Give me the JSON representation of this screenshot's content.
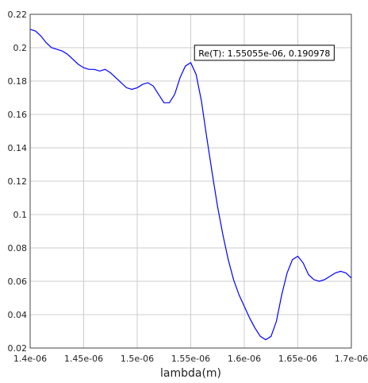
{
  "chart_data": {
    "type": "line",
    "xlabel": "lambda(m)",
    "ylabel": "",
    "title": "",
    "xlim": [
      1.4e-06,
      1.7e-06
    ],
    "ylim": [
      0.02,
      0.22
    ],
    "grid": true,
    "x_ticks": [
      {
        "value": 1.4e-06,
        "label": "1.4e-06"
      },
      {
        "value": 1.45e-06,
        "label": "1.45e-06"
      },
      {
        "value": 1.5e-06,
        "label": "1.5e-06"
      },
      {
        "value": 1.55e-06,
        "label": "1.55e-06"
      },
      {
        "value": 1.6e-06,
        "label": "1.6e-06"
      },
      {
        "value": 1.65e-06,
        "label": "1.65e-06"
      },
      {
        "value": 1.7e-06,
        "label": "1.7e-06"
      }
    ],
    "y_ticks": [
      {
        "value": 0.02,
        "label": "0.02"
      },
      {
        "value": 0.04,
        "label": "0.04"
      },
      {
        "value": 0.06,
        "label": "0.06"
      },
      {
        "value": 0.08,
        "label": "0.08"
      },
      {
        "value": 0.1,
        "label": "0.1"
      },
      {
        "value": 0.12,
        "label": "0.12"
      },
      {
        "value": 0.14,
        "label": "0.14"
      },
      {
        "value": 0.16,
        "label": "0.16"
      },
      {
        "value": 0.18,
        "label": "0.18"
      },
      {
        "value": 0.2,
        "label": "0.2"
      },
      {
        "value": 0.22,
        "label": "0.22"
      }
    ],
    "series": [
      {
        "color": "#0000ff",
        "x": [
          1.4e-06,
          1.405e-06,
          1.41e-06,
          1.415e-06,
          1.42e-06,
          1.425e-06,
          1.43e-06,
          1.435e-06,
          1.44e-06,
          1.445e-06,
          1.45e-06,
          1.455e-06,
          1.46e-06,
          1.465e-06,
          1.47e-06,
          1.475e-06,
          1.48e-06,
          1.485e-06,
          1.49e-06,
          1.495e-06,
          1.5e-06,
          1.505e-06,
          1.51e-06,
          1.515e-06,
          1.52e-06,
          1.525e-06,
          1.53e-06,
          1.535e-06,
          1.54e-06,
          1.545e-06,
          1.55e-06,
          1.555e-06,
          1.56e-06,
          1.565e-06,
          1.57e-06,
          1.575e-06,
          1.58e-06,
          1.585e-06,
          1.59e-06,
          1.595e-06,
          1.6e-06,
          1.605e-06,
          1.61e-06,
          1.615e-06,
          1.62e-06,
          1.625e-06,
          1.63e-06,
          1.635e-06,
          1.64e-06,
          1.645e-06,
          1.65e-06,
          1.655e-06,
          1.66e-06,
          1.665e-06,
          1.67e-06,
          1.675e-06,
          1.68e-06,
          1.685e-06,
          1.69e-06,
          1.695e-06,
          1.7e-06
        ],
        "y": [
          0.211,
          0.21,
          0.207,
          0.203,
          0.2,
          0.199,
          0.198,
          0.196,
          0.193,
          0.19,
          0.188,
          0.187,
          0.187,
          0.186,
          0.187,
          0.185,
          0.182,
          0.179,
          0.176,
          0.175,
          0.176,
          0.178,
          0.179,
          0.177,
          0.172,
          0.167,
          0.167,
          0.172,
          0.182,
          0.189,
          0.191,
          0.184,
          0.168,
          0.146,
          0.125,
          0.105,
          0.088,
          0.073,
          0.061,
          0.052,
          0.045,
          0.038,
          0.032,
          0.027,
          0.025,
          0.027,
          0.036,
          0.052,
          0.065,
          0.073,
          0.075,
          0.071,
          0.064,
          0.061,
          0.06,
          0.061,
          0.063,
          0.065,
          0.066,
          0.065,
          0.062
        ]
      }
    ],
    "annotation": {
      "text": "Re(T): 1.55055e-06, 0.190978",
      "x": 1.55055e-06,
      "y": 0.190978
    }
  }
}
